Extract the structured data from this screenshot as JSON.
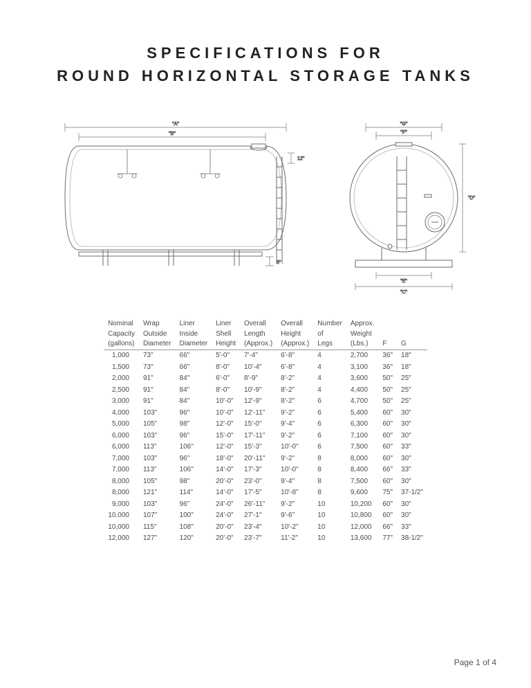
{
  "title_line1": "SPECIFICATIONS FOR",
  "title_line2": "ROUND HORIZONTAL STORAGE TANKS",
  "footer": "Page 1 of 4",
  "diagram": {
    "side": {
      "dim_A": "\"A\"",
      "dim_B": "\"B\"",
      "dim_12": "12\"",
      "dim_6": "6\""
    },
    "end": {
      "dim_G": "\"G\"",
      "dim_F": "\"F\"",
      "dim_D": "\"D\"",
      "dim_E": "\"E\"",
      "dim_C": "\"C\""
    },
    "stroke": "#6b6b6b",
    "stroke_light": "#9a9a9a",
    "fill_bg": "#ffffff"
  },
  "table": {
    "columns": [
      [
        "Nominal",
        "Capacity",
        "(gallons)"
      ],
      [
        "Wrap",
        "Outside",
        "Diameter"
      ],
      [
        "Liner",
        "Inside",
        "Diameter"
      ],
      [
        "Liner",
        "Shell",
        "Height"
      ],
      [
        "Overall",
        "Length",
        "(Approx.)"
      ],
      [
        "Overall",
        "Height",
        "(Approx.)"
      ],
      [
        "Number",
        "of",
        "Legs"
      ],
      [
        "Approx.",
        "Weight",
        "(Lbs.)"
      ],
      [
        "",
        "",
        "F"
      ],
      [
        "",
        "",
        "G"
      ]
    ],
    "rows": [
      [
        "1,000",
        "73\"",
        "66\"",
        "5'-0\"",
        "7'-4\"",
        "6'-8\"",
        "4",
        "2,700",
        "36\"",
        "18\""
      ],
      [
        "1,500",
        "73\"",
        "66\"",
        "8'-0\"",
        "10'-4\"",
        "6'-8\"",
        "4",
        "3,100",
        "36\"",
        "18\""
      ],
      [
        "2,000",
        "91\"",
        "84\"",
        "6'-0\"",
        "8'-9\"",
        "8'-2\"",
        "4",
        "3,600",
        "50\"",
        "25\""
      ],
      [
        "2,500",
        "91\"",
        "84\"",
        "8'-0\"",
        "10'-9\"",
        "8'-2\"",
        "4",
        "4,400",
        "50\"",
        "25\""
      ],
      [
        "3,000",
        "91\"",
        "84\"",
        "10'-0\"",
        "12'-9\"",
        "8'-2\"",
        "6",
        "4,700",
        "50\"",
        "25\""
      ],
      [
        "4,000",
        "103\"",
        "96\"",
        "10'-0\"",
        "12'-11\"",
        "9'-2\"",
        "6",
        "5,400",
        "60\"",
        "30\""
      ],
      [
        "5,000",
        "105\"",
        "98\"",
        "12'-0\"",
        "15'-0\"",
        "9'-4\"",
        "6",
        "6,300",
        "60\"",
        "30\""
      ],
      [
        "6,000",
        "103\"",
        "96\"",
        "15'-0\"",
        "17'-11\"",
        "9'-2\"",
        "6",
        "7,100",
        "60\"",
        "30\""
      ],
      [
        "6,000",
        "113\"",
        "106\"",
        "12'-0\"",
        "15'-3\"",
        "10'-0\"",
        "6",
        "7,500",
        "60\"",
        "33\""
      ],
      [
        "7,000",
        "103\"",
        "96\"",
        "18'-0\"",
        "20'-11\"",
        "9'-2\"",
        "8",
        "8,000",
        "60\"",
        "30\""
      ],
      [
        "7,000",
        "113\"",
        "106\"",
        "14'-0\"",
        "17'-3\"",
        "10'-0\"",
        "8",
        "8,400",
        "66\"",
        "33\""
      ],
      [
        "8,000",
        "105\"",
        "98\"",
        "20'-0\"",
        "23'-0\"",
        "9'-4\"",
        "8",
        "7,500",
        "60\"",
        "30\""
      ],
      [
        "8,000",
        "121\"",
        "114\"",
        "14'-0\"",
        "17'-5\"",
        "10'-8\"",
        "8",
        "9,600",
        "75\"",
        "37-1/2\""
      ],
      [
        "9,000",
        "103\"",
        "96\"",
        "24'-0\"",
        "26'-11\"",
        "9'-2\"",
        "10",
        "10,200",
        "60\"",
        "30\""
      ],
      [
        "10,000",
        "107\"",
        "100\"",
        "24'-0\"",
        "27'-1\"",
        "9'-6\"",
        "10",
        "10,800",
        "60\"",
        "30\""
      ],
      [
        "10,000",
        "115\"",
        "108\"",
        "20'-0\"",
        "23'-4\"",
        "10'-2\"",
        "10",
        "12,000",
        "66\"",
        "33\""
      ],
      [
        "12,000",
        "127\"",
        "120\"",
        "20'-0\"",
        "23'-7\"",
        "11'-2\"",
        "10",
        "13,600",
        "77\"",
        "38-1/2\""
      ]
    ]
  }
}
